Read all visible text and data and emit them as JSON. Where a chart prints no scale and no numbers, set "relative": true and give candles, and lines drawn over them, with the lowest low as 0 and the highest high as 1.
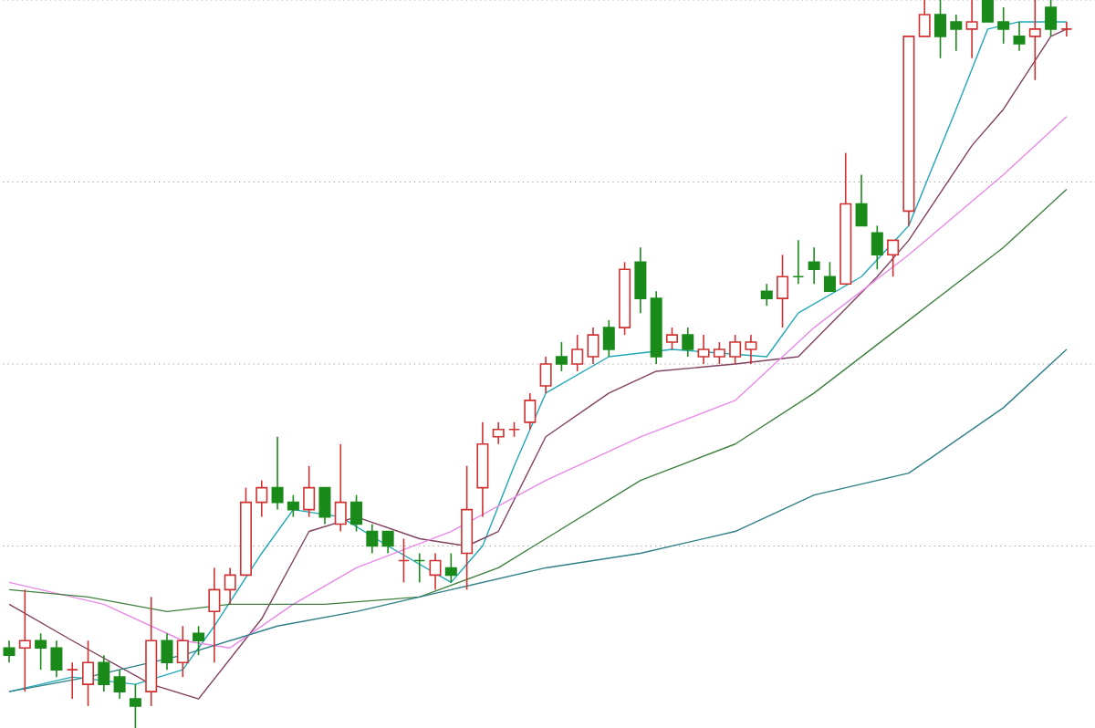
{
  "chart_data": {
    "type": "candlestick",
    "relative": true,
    "categories": [
      null,
      null,
      null,
      null,
      null,
      null,
      null,
      null,
      null,
      null,
      null,
      null,
      null,
      null,
      null,
      null,
      null,
      null,
      null,
      null,
      null,
      null,
      null,
      null,
      null,
      null,
      null,
      null,
      null,
      null,
      null,
      null,
      null,
      null,
      null,
      null,
      null,
      null,
      null,
      null,
      null,
      null,
      null,
      null,
      null,
      null,
      null,
      null,
      null,
      null,
      null,
      null,
      null,
      null,
      null,
      null,
      null,
      null,
      null,
      null,
      null,
      null,
      null,
      null,
      null,
      null,
      null,
      null
    ],
    "ohlc": [
      [
        0.11,
        0.12,
        0.09,
        0.1
      ],
      [
        0.11,
        0.19,
        0.05,
        0.12
      ],
      [
        0.12,
        0.13,
        0.08,
        0.11
      ],
      [
        0.11,
        0.12,
        0.07,
        0.08
      ],
      [
        0.08,
        0.09,
        0.04,
        0.08
      ],
      [
        0.06,
        0.12,
        0.03,
        0.09
      ],
      [
        0.09,
        0.1,
        0.05,
        0.06
      ],
      [
        0.07,
        0.08,
        0.04,
        0.05
      ],
      [
        0.04,
        0.06,
        0,
        0.03
      ],
      [
        0.05,
        0.18,
        0.03,
        0.12
      ],
      [
        0.12,
        0.13,
        0.08,
        0.09
      ],
      [
        0.09,
        0.14,
        0.07,
        0.12
      ],
      [
        0.13,
        0.14,
        0.1,
        0.12
      ],
      [
        0.16,
        0.22,
        0.09,
        0.19
      ],
      [
        0.19,
        0.22,
        0.17,
        0.21
      ],
      [
        0.21,
        0.33,
        0.21,
        0.31
      ],
      [
        0.31,
        0.34,
        0.29,
        0.33
      ],
      [
        0.33,
        0.4,
        0.3,
        0.31
      ],
      [
        0.31,
        0.32,
        0.29,
        0.3
      ],
      [
        0.3,
        0.36,
        0.29,
        0.33
      ],
      [
        0.33,
        0.33,
        0.28,
        0.29
      ],
      [
        0.28,
        0.39,
        0.27,
        0.31
      ],
      [
        0.31,
        0.32,
        0.27,
        0.28
      ],
      [
        0.27,
        0.28,
        0.24,
        0.25
      ],
      [
        0.27,
        0.27,
        0.24,
        0.25
      ],
      [
        0.23,
        0.26,
        0.2,
        0.23
      ],
      [
        0.23,
        0.24,
        0.2,
        0.23
      ],
      [
        0.21,
        0.24,
        0.19,
        0.23
      ],
      [
        0.22,
        0.24,
        0.2,
        0.21
      ],
      [
        0.24,
        0.36,
        0.19,
        0.3
      ],
      [
        0.33,
        0.42,
        0.29,
        0.39
      ],
      [
        0.4,
        0.42,
        0.39,
        0.41
      ],
      [
        0.41,
        0.42,
        0.4,
        0.41
      ],
      [
        0.42,
        0.46,
        0.41,
        0.45
      ],
      [
        0.47,
        0.51,
        0.46,
        0.5
      ],
      [
        0.51,
        0.53,
        0.49,
        0.5
      ],
      [
        0.5,
        0.54,
        0.49,
        0.52
      ],
      [
        0.51,
        0.55,
        0.5,
        0.54
      ],
      [
        0.55,
        0.56,
        0.51,
        0.52
      ],
      [
        0.55,
        0.64,
        0.54,
        0.63
      ],
      [
        0.64,
        0.66,
        0.57,
        0.59
      ],
      [
        0.59,
        0.6,
        0.5,
        0.51
      ],
      [
        0.53,
        0.55,
        0.52,
        0.54
      ],
      [
        0.54,
        0.55,
        0.51,
        0.52
      ],
      [
        0.51,
        0.54,
        0.5,
        0.52
      ],
      [
        0.51,
        0.53,
        0.5,
        0.52
      ],
      [
        0.51,
        0.54,
        0.5,
        0.53
      ],
      [
        0.52,
        0.54,
        0.5,
        0.53
      ],
      [
        0.6,
        0.61,
        0.58,
        0.59
      ],
      [
        0.59,
        0.65,
        0.55,
        0.62
      ],
      [
        0.62,
        0.67,
        0.61,
        0.62
      ],
      [
        0.64,
        0.66,
        0.61,
        0.63
      ],
      [
        0.62,
        0.64,
        0.6,
        0.6
      ],
      [
        0.61,
        0.79,
        0.61,
        0.72
      ],
      [
        0.72,
        0.76,
        0.69,
        0.69
      ],
      [
        0.68,
        0.69,
        0.63,
        0.65
      ],
      [
        0.65,
        0.67,
        0.62,
        0.67
      ],
      [
        0.71,
        0.95,
        0.69,
        0.95
      ],
      [
        0.95,
        1,
        0.95,
        0.98
      ],
      [
        0.98,
        1,
        0.92,
        0.95
      ],
      [
        0.97,
        0.98,
        0.93,
        0.96
      ],
      [
        0.96,
        1,
        0.92,
        0.97
      ],
      [
        1,
        1,
        0.97,
        0.97
      ],
      [
        0.97,
        0.99,
        0.94,
        0.96
      ],
      [
        0.95,
        0.97,
        0.93,
        0.94
      ],
      [
        0.95,
        1,
        0.89,
        0.96
      ],
      [
        0.99,
        1,
        0.95,
        0.96
      ],
      [
        0.96,
        0.97,
        0.95,
        0.96
      ]
    ],
    "colors": [
      "#1a8a1a",
      "#d03030",
      "#1a8a1a",
      "#1a8a1a",
      "#d03030",
      "#d03030",
      "#1a8a1a",
      "#1a8a1a",
      "#1a8a1a",
      "#d03030",
      "#1a8a1a",
      "#d03030",
      "#1a8a1a",
      "#d03030",
      "#d03030",
      "#d03030",
      "#d03030",
      "#1a8a1a",
      "#1a8a1a",
      "#d03030",
      "#1a8a1a",
      "#d03030",
      "#1a8a1a",
      "#1a8a1a",
      "#1a8a1a",
      "#d03030",
      "#1a8a1a",
      "#d03030",
      "#1a8a1a",
      "#d03030",
      "#d03030",
      "#d03030",
      "#d03030",
      "#d03030",
      "#d03030",
      "#1a8a1a",
      "#d03030",
      "#d03030",
      "#1a8a1a",
      "#d03030",
      "#1a8a1a",
      "#1a8a1a",
      "#d03030",
      "#1a8a1a",
      "#d03030",
      "#d03030",
      "#d03030",
      "#d03030",
      "#1a8a1a",
      "#d03030",
      "#1a8a1a",
      "#1a8a1a",
      "#1a8a1a",
      "#d03030",
      "#1a8a1a",
      "#1a8a1a",
      "#d03030",
      "#d03030",
      "#d03030",
      "#1a8a1a",
      "#1a8a1a",
      "#d03030",
      "#1a8a1a",
      "#1a8a1a",
      "#1a8a1a",
      "#d03030",
      "#1a8a1a",
      "#d03030"
    ],
    "series": [
      {
        "type": "line",
        "color": "#20a8b8",
        "values": [
          0.05,
          null,
          null,
          null,
          0.07,
          null,
          null,
          null,
          0.06,
          null,
          null,
          0.08,
          null,
          0.14,
          null,
          null,
          0.24,
          null,
          0.3,
          null,
          null,
          0.29,
          null,
          null,
          0.25,
          null,
          null,
          null,
          0.2,
          null,
          0.25,
          null,
          0.36,
          null,
          0.46,
          null,
          null,
          null,
          0.51,
          null,
          null,
          null,
          0.52,
          null,
          null,
          null,
          null,
          null,
          0.51,
          null,
          0.57,
          null,
          null,
          null,
          0.62,
          null,
          null,
          0.69,
          null,
          null,
          0.85,
          null,
          0.96,
          null,
          0.97,
          null,
          null,
          0.97
        ]
      },
      {
        "type": "line",
        "color": "#804060",
        "values": [
          0.17,
          null,
          null,
          null,
          0.12,
          null,
          null,
          null,
          null,
          0.06,
          null,
          null,
          0.04,
          null,
          null,
          null,
          0.15,
          null,
          null,
          0.27,
          null,
          null,
          0.29,
          null,
          null,
          null,
          0.26,
          null,
          null,
          0.25,
          null,
          0.27,
          null,
          null,
          0.4,
          null,
          null,
          null,
          0.46,
          null,
          null,
          0.49,
          null,
          null,
          null,
          null,
          0.5,
          null,
          null,
          null,
          0.51,
          null,
          null,
          null,
          null,
          0.62,
          null,
          0.67,
          null,
          null,
          null,
          0.8,
          null,
          0.85,
          null,
          null,
          0.95,
          0.96
        ]
      },
      {
        "type": "line",
        "color": "#e88ae8",
        "values": [
          0.2,
          null,
          null,
          null,
          null,
          null,
          0.17,
          null,
          null,
          null,
          null,
          0.12,
          null,
          null,
          0.11,
          null,
          null,
          null,
          0.17,
          null,
          null,
          null,
          0.22,
          null,
          null,
          null,
          null,
          null,
          0.27,
          null,
          null,
          null,
          null,
          null,
          0.34,
          null,
          null,
          null,
          null,
          null,
          0.4,
          null,
          null,
          null,
          null,
          null,
          0.45,
          null,
          null,
          null,
          null,
          0.55,
          null,
          null,
          null,
          null,
          null,
          0.65,
          null,
          null,
          null,
          null,
          null,
          0.76,
          null,
          null,
          null,
          0.84
        ]
      },
      {
        "type": "line",
        "color": "#3f8040",
        "values": [
          0.19,
          null,
          null,
          null,
          null,
          0.18,
          null,
          null,
          null,
          null,
          0.16,
          null,
          null,
          null,
          0.17,
          null,
          null,
          null,
          null,
          null,
          0.17,
          null,
          null,
          null,
          null,
          null,
          0.18,
          null,
          null,
          null,
          null,
          0.22,
          null,
          null,
          0.26,
          null,
          null,
          null,
          null,
          null,
          0.34,
          null,
          null,
          null,
          null,
          null,
          0.39,
          null,
          null,
          null,
          null,
          0.46,
          null,
          null,
          null,
          null,
          null,
          0.56,
          null,
          null,
          null,
          null,
          null,
          0.66,
          null,
          null,
          null,
          0.74
        ]
      },
      {
        "type": "line",
        "color": "#2f7f86",
        "values": [
          0.05,
          null,
          null,
          null,
          null,
          0.07,
          null,
          null,
          null,
          null,
          null,
          0.1,
          null,
          null,
          null,
          null,
          null,
          0.14,
          null,
          null,
          null,
          null,
          0.16,
          null,
          null,
          null,
          null,
          null,
          0.19,
          null,
          null,
          null,
          null,
          null,
          0.22,
          null,
          null,
          null,
          null,
          null,
          0.24,
          null,
          null,
          null,
          null,
          null,
          0.27,
          null,
          null,
          null,
          null,
          0.32,
          null,
          null,
          null,
          null,
          null,
          0.35,
          null,
          null,
          null,
          null,
          null,
          0.44,
          null,
          null,
          null,
          0.52
        ]
      }
    ],
    "ref_lines": [
      {
        "axis": "y",
        "value": 0.25,
        "color": "#999999",
        "line_style": "dotted"
      },
      {
        "axis": "y",
        "value": 0.5,
        "color": "#999999",
        "line_style": "dotted"
      },
      {
        "axis": "y",
        "value": 0.75,
        "color": "#999999",
        "line_style": "dotted"
      },
      {
        "axis": "y",
        "value": 1,
        "color": "#999999",
        "line_style": "dotted"
      }
    ]
  }
}
